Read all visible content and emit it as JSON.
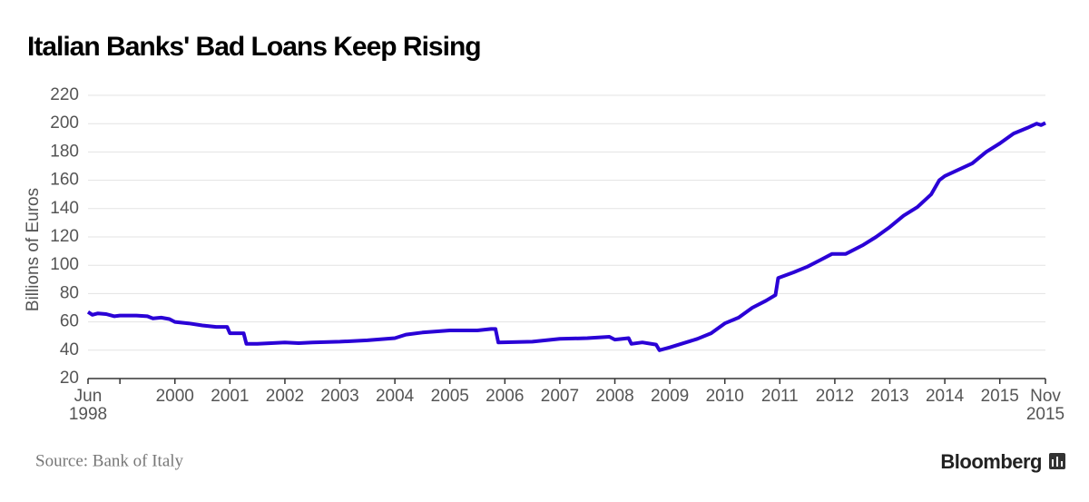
{
  "chart_data": {
    "type": "line",
    "title": "Italian Banks' Bad Loans Keep Rising",
    "y_label": "Billions of Euros",
    "source": "Source: Bank of Italy",
    "brand": "Bloomberg",
    "color": "#2a00d6",
    "grid": true,
    "x": [
      1998.42,
      1998.5,
      1998.6,
      1998.75,
      1998.9,
      1999.0,
      1999.3,
      1999.5,
      1999.6,
      1999.75,
      1999.9,
      2000.0,
      2000.25,
      2000.5,
      2000.75,
      2000.95,
      2001.0,
      2001.25,
      2001.3,
      2001.5,
      2001.75,
      2002.0,
      2002.25,
      2002.5,
      2003.0,
      2003.5,
      2004.0,
      2004.2,
      2004.5,
      2005.0,
      2005.5,
      2005.75,
      2005.83,
      2005.88,
      2006.5,
      2007.0,
      2007.5,
      2007.9,
      2008.0,
      2008.25,
      2008.3,
      2008.5,
      2008.75,
      2008.81,
      2009.0,
      2009.5,
      2009.75,
      2010.0,
      2010.25,
      2010.5,
      2010.75,
      2010.92,
      2010.97,
      2011.25,
      2011.5,
      2011.75,
      2011.95,
      2012.2,
      2012.5,
      2012.75,
      2013.0,
      2013.25,
      2013.5,
      2013.75,
      2013.9,
      2014.0,
      2014.5,
      2014.75,
      2015.0,
      2015.25,
      2015.5,
      2015.67,
      2015.75,
      2015.83
    ],
    "values": [
      67,
      65,
      66,
      65.5,
      64,
      64.5,
      64.5,
      64,
      62.5,
      63,
      62,
      60,
      59,
      57.5,
      56.5,
      56.5,
      52,
      52,
      44.5,
      44.5,
      45,
      45.5,
      45,
      45.5,
      46,
      47,
      48.5,
      51,
      52.5,
      54,
      54,
      55,
      55,
      45.5,
      46,
      48,
      48.5,
      49.5,
      47.5,
      48.5,
      44.5,
      45.5,
      44,
      40,
      42,
      48,
      52,
      59,
      63,
      70,
      75,
      79,
      91,
      95,
      99,
      104,
      108,
      108,
      114,
      120,
      127,
      135,
      141,
      150,
      160,
      163,
      172,
      180,
      186,
      193,
      197,
      200,
      199,
      200.5
    ],
    "xlim": [
      1998.42,
      2015.83
    ],
    "xticks": [
      {
        "value": 1998.42,
        "label": "Jun\n1998"
      },
      {
        "value": 1999,
        "label": null
      },
      2000,
      2001,
      2002,
      2003,
      2004,
      2005,
      2006,
      2007,
      2008,
      2009,
      2010,
      2011,
      2012,
      2013,
      2014,
      2015,
      {
        "value": 2015.83,
        "label": "Nov\n2015"
      }
    ],
    "ylim": [
      20,
      220
    ],
    "yticks": [
      20,
      40,
      60,
      80,
      100,
      120,
      140,
      160,
      180,
      200,
      220
    ]
  }
}
